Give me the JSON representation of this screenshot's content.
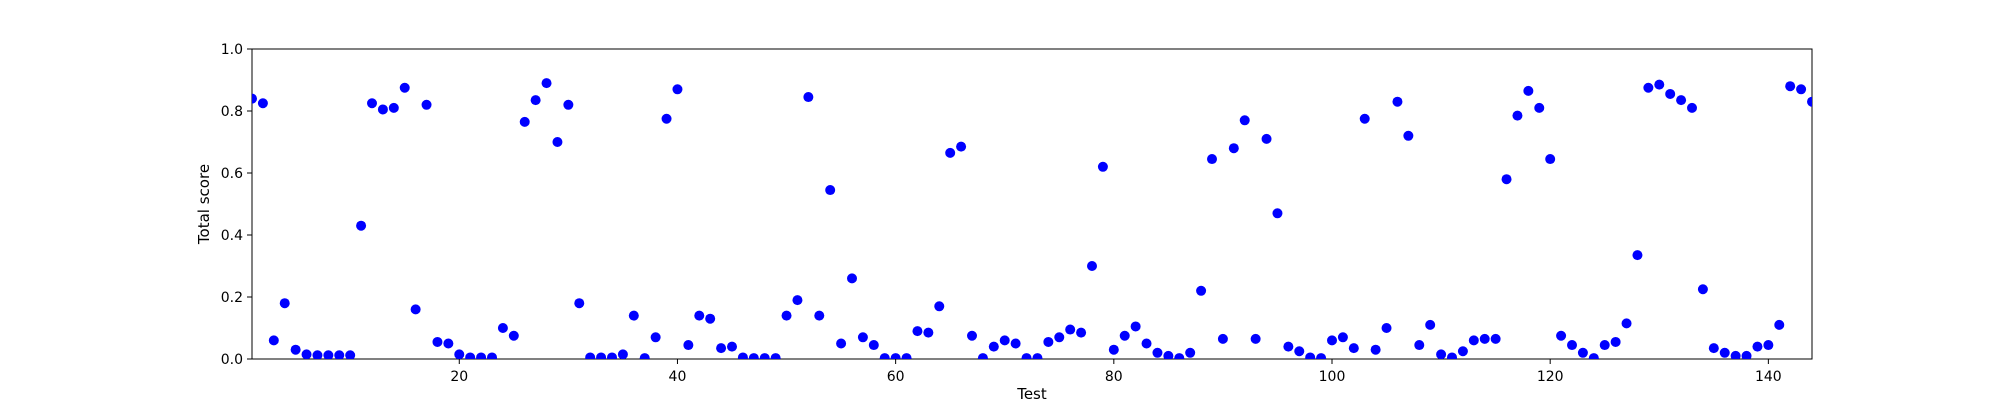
{
  "chart_data": {
    "type": "scatter",
    "title": "",
    "xlabel": "Test",
    "ylabel": "Total score",
    "xlim": [
      1,
      144
    ],
    "ylim": [
      0,
      1.0
    ],
    "x_ticks": [
      20,
      40,
      60,
      80,
      100,
      120,
      140
    ],
    "y_ticks": [
      0.0,
      0.2,
      0.4,
      0.6,
      0.8,
      1.0
    ],
    "x_tick_labels": [
      "20",
      "40",
      "60",
      "80",
      "100",
      "120",
      "140"
    ],
    "y_tick_labels": [
      "0.0",
      "0.2",
      "0.4",
      "0.6",
      "0.8",
      "1.0"
    ],
    "grid": false,
    "legend": "none",
    "marker_color": "#0000ff",
    "x": [
      1,
      2,
      3,
      4,
      5,
      6,
      7,
      8,
      9,
      10,
      11,
      12,
      13,
      14,
      15,
      16,
      17,
      18,
      19,
      20,
      21,
      22,
      23,
      24,
      25,
      26,
      27,
      28,
      29,
      30,
      31,
      32,
      33,
      34,
      35,
      36,
      37,
      38,
      39,
      40,
      41,
      42,
      43,
      44,
      45,
      46,
      47,
      48,
      49,
      50,
      51,
      52,
      53,
      54,
      55,
      56,
      57,
      58,
      59,
      60,
      61,
      62,
      63,
      64,
      65,
      66,
      67,
      68,
      69,
      70,
      71,
      72,
      73,
      74,
      75,
      76,
      77,
      78,
      79,
      80,
      81,
      82,
      83,
      84,
      85,
      86,
      87,
      88,
      89,
      90,
      91,
      92,
      93,
      94,
      95,
      96,
      97,
      98,
      99,
      100,
      101,
      102,
      103,
      104,
      105,
      106,
      107,
      108,
      109,
      110,
      111,
      112,
      113,
      114,
      115,
      116,
      117,
      118,
      119,
      120,
      121,
      122,
      123,
      124,
      125,
      126,
      127,
      128,
      129,
      130,
      131,
      132,
      133,
      134,
      135,
      136,
      137,
      138,
      139,
      140,
      141,
      142,
      143,
      144
    ],
    "y": [
      0.84,
      0.825,
      0.06,
      0.18,
      0.03,
      0.015,
      0.012,
      0.012,
      0.012,
      0.012,
      0.43,
      0.825,
      0.805,
      0.81,
      0.875,
      0.16,
      0.82,
      0.055,
      0.05,
      0.015,
      0.005,
      0.005,
      0.005,
      0.1,
      0.075,
      0.765,
      0.835,
      0.89,
      0.7,
      0.82,
      0.18,
      0.005,
      0.005,
      0.005,
      0.015,
      0.14,
      0.003,
      0.07,
      0.775,
      0.87,
      0.045,
      0.14,
      0.13,
      0.035,
      0.04,
      0.005,
      0.003,
      0.003,
      0.003,
      0.14,
      0.19,
      0.845,
      0.14,
      0.545,
      0.05,
      0.26,
      0.07,
      0.045,
      0.003,
      0.003,
      0.003,
      0.09,
      0.085,
      0.17,
      0.665,
      0.685,
      0.075,
      0.003,
      0.04,
      0.06,
      0.05,
      0.003,
      0.003,
      0.055,
      0.07,
      0.095,
      0.085,
      0.3,
      0.62,
      0.03,
      0.075,
      0.105,
      0.05,
      0.02,
      0.01,
      0.003,
      0.02,
      0.22,
      0.645,
      0.065,
      0.68,
      0.77,
      0.065,
      0.71,
      0.47,
      0.04,
      0.025,
      0.005,
      0.003,
      0.06,
      0.07,
      0.035,
      0.775,
      0.03,
      0.1,
      0.83,
      0.72,
      0.045,
      0.11,
      0.015,
      0.005,
      0.025,
      0.06,
      0.065,
      0.065,
      0.58,
      0.785,
      0.865,
      0.81,
      0.645,
      0.075,
      0.045,
      0.02,
      0.003,
      0.045,
      0.055,
      0.115,
      0.335,
      0.875,
      0.885,
      0.855,
      0.835,
      0.81,
      0.225,
      0.035,
      0.02,
      0.01,
      0.01,
      0.04,
      0.045,
      0.11,
      0.88,
      0.87,
      0.83
    ]
  }
}
